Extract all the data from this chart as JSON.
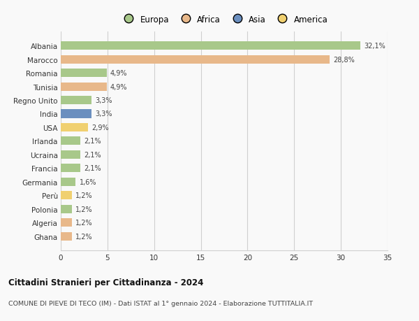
{
  "countries": [
    "Albania",
    "Marocco",
    "Romania",
    "Tunisia",
    "Regno Unito",
    "India",
    "USA",
    "Irlanda",
    "Ucraina",
    "Francia",
    "Germania",
    "Perù",
    "Polonia",
    "Algeria",
    "Ghana"
  ],
  "values": [
    32.1,
    28.8,
    4.9,
    4.9,
    3.3,
    3.3,
    2.9,
    2.1,
    2.1,
    2.1,
    1.6,
    1.2,
    1.2,
    1.2,
    1.2
  ],
  "labels": [
    "32,1%",
    "28,8%",
    "4,9%",
    "4,9%",
    "3,3%",
    "3,3%",
    "2,9%",
    "2,1%",
    "2,1%",
    "2,1%",
    "1,6%",
    "1,2%",
    "1,2%",
    "1,2%",
    "1,2%"
  ],
  "continents": [
    "Europa",
    "Africa",
    "Europa",
    "Africa",
    "Europa",
    "Asia",
    "America",
    "Europa",
    "Europa",
    "Europa",
    "Europa",
    "America",
    "Europa",
    "Africa",
    "Africa"
  ],
  "colors": {
    "Europa": "#a8c88a",
    "Africa": "#e8b88a",
    "Asia": "#6b8fbf",
    "America": "#f0d070"
  },
  "title": "Cittadini Stranieri per Cittadinanza - 2024",
  "subtitle": "COMUNE DI PIEVE DI TECO (IM) - Dati ISTAT al 1° gennaio 2024 - Elaborazione TUTTITALIA.IT",
  "xlim": [
    0,
    35
  ],
  "xticks": [
    0,
    5,
    10,
    15,
    20,
    25,
    30,
    35
  ],
  "background_color": "#f9f9f9",
  "grid_color": "#d0d0d0",
  "legend_order": [
    "Europa",
    "Africa",
    "Asia",
    "America"
  ]
}
